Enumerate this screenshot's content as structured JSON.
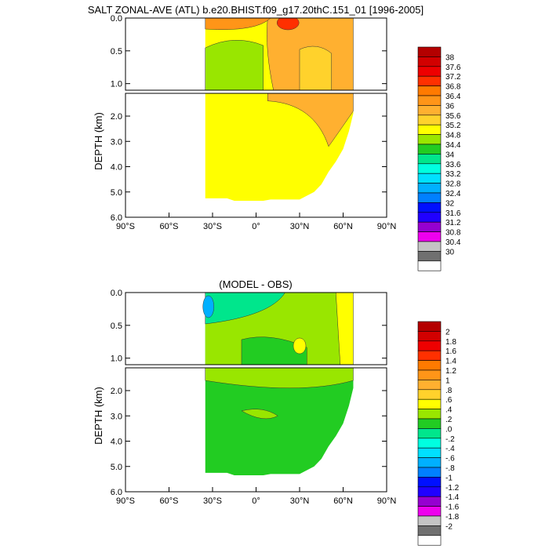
{
  "chart_data": [
    {
      "type": "heatmap",
      "title": "SALT ZONAL-AVE (ATL) b.e20.BHIST.f09_g17.20thC.151_01 [1996-2005]",
      "ylabel": "DEPTH (km)",
      "x_ticks": [
        "90°S",
        "60°S",
        "30°S",
        "0°",
        "30°N",
        "60°N",
        "90°N"
      ],
      "x_tick_values": [
        -90,
        -60,
        -30,
        0,
        30,
        60,
        90
      ],
      "xlim": [
        -90,
        90
      ],
      "y_ticks_upper": [
        "0.0",
        "0.5",
        "1.0"
      ],
      "y_tick_values_upper": [
        0,
        0.5,
        1.0
      ],
      "ylim_upper": [
        0,
        1.1
      ],
      "y_ticks_lower": [
        "2.0",
        "3.0",
        "4.0",
        "5.0",
        "6.0"
      ],
      "y_tick_values_lower": [
        2,
        3,
        4,
        5,
        6
      ],
      "ylim_lower": [
        1.1,
        6.0
      ],
      "colorbar": {
        "labels": [
          "38",
          "37.6",
          "37.2",
          "36.8",
          "36.4",
          "36",
          "35.6",
          "35.2",
          "34.8",
          "34.4",
          "34",
          "33.6",
          "33.2",
          "32.8",
          "32.4",
          "32",
          "31.6",
          "31.2",
          "30.8",
          "30.4",
          "30"
        ],
        "colors": [
          "#b40000",
          "#d20000",
          "#ee0000",
          "#ff3000",
          "#ff7a00",
          "#ff9518",
          "#ffb030",
          "#ffd22c",
          "#ffff00",
          "#99e600",
          "#22cc22",
          "#00e68c",
          "#00ffe0",
          "#00e0ff",
          "#00b0ff",
          "#0080ff",
          "#0010ff",
          "#2000ff",
          "#9600d0",
          "#ee00ee",
          "#c4c4c4",
          "#707070",
          "#ffffff"
        ]
      },
      "regions": {
        "background": "#ffff00",
        "deep_lon_range": [
          -35,
          67
        ],
        "shallow_orange_band": "#ffb030",
        "surface_max": "#ff3000",
        "southern_green": "#99e600"
      }
    },
    {
      "type": "heatmap",
      "title": "(MODEL - OBS)",
      "ylabel": "DEPTH (km)",
      "x_ticks": [
        "90°S",
        "60°S",
        "30°S",
        "0°",
        "30°N",
        "60°N",
        "90°N"
      ],
      "x_tick_values": [
        -90,
        -60,
        -30,
        0,
        30,
        60,
        90
      ],
      "xlim": [
        -90,
        90
      ],
      "y_ticks_upper": [
        "0.0",
        "0.5",
        "1.0"
      ],
      "y_tick_values_upper": [
        0,
        0.5,
        1.0
      ],
      "ylim_upper": [
        0,
        1.1
      ],
      "y_ticks_lower": [
        "2.0",
        "3.0",
        "4.0",
        "5.0",
        "6.0"
      ],
      "y_tick_values_lower": [
        2,
        3,
        4,
        5,
        6
      ],
      "ylim_lower": [
        1.1,
        6.0
      ],
      "colorbar": {
        "labels": [
          "2",
          "1.8",
          "1.6",
          "1.4",
          "1.2",
          "1",
          ".8",
          ".6",
          ".4",
          ".2",
          ".0",
          "-.2",
          "-.4",
          "-.6",
          "-.8",
          "-1",
          "-1.2",
          "-1.4",
          "-1.6",
          "-1.8",
          "-2"
        ],
        "colors": [
          "#b40000",
          "#d20000",
          "#ee0000",
          "#ff3000",
          "#ff7a00",
          "#ff9518",
          "#ffb030",
          "#ffd22c",
          "#ffff00",
          "#99e600",
          "#22cc22",
          "#00e68c",
          "#00ffe0",
          "#00e0ff",
          "#00b0ff",
          "#0080ff",
          "#0010ff",
          "#2000ff",
          "#9600d0",
          "#ee00ee",
          "#c4c4c4",
          "#707070",
          "#ffffff"
        ]
      },
      "regions": {
        "background": "#22cc22",
        "deep_lon_range": [
          -35,
          67
        ],
        "upper_light_green": "#99e600",
        "surface_cyan": "#00e68c",
        "northern_yellow": "#ffff00"
      }
    }
  ]
}
